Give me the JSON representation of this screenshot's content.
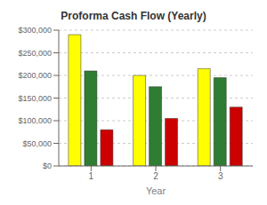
{
  "chart_data": {
    "type": "bar",
    "title": "Proforma Cash Flow (Yearly)",
    "xlabel": "Year",
    "categories": [
      "1",
      "2",
      "3"
    ],
    "series": [
      {
        "color": "#FFFF00",
        "values": [
          290000,
          200000,
          215000
        ]
      },
      {
        "color": "#2E7D32",
        "values": [
          210000,
          175000,
          195000
        ]
      },
      {
        "color": "#CC0000",
        "values": [
          80000,
          105000,
          130000
        ]
      }
    ],
    "ylim": [
      0,
      300000
    ],
    "yticks": [
      {
        "value": 0,
        "label": "$0"
      },
      {
        "value": 50000,
        "label": "$50,000"
      },
      {
        "value": 100000,
        "label": "$100,000"
      },
      {
        "value": 150000,
        "label": "$150,000"
      },
      {
        "value": 200000,
        "label": "$200,000"
      },
      {
        "value": 250000,
        "label": "$250,000"
      },
      {
        "value": 300000,
        "label": "$300,000"
      }
    ],
    "grid": true
  }
}
